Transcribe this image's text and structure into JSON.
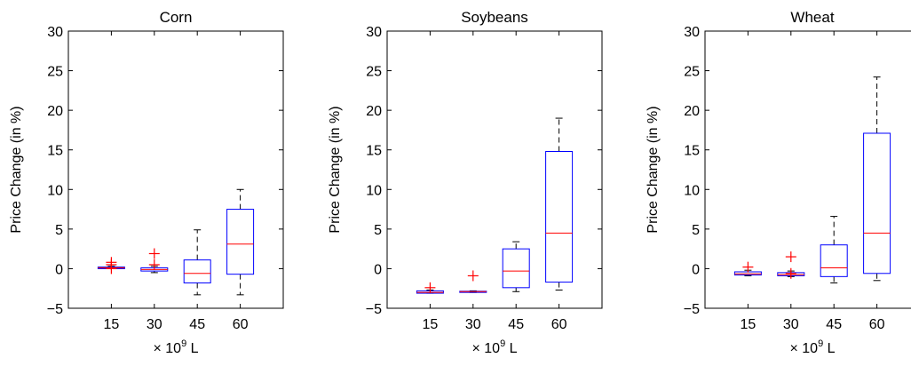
{
  "chart_data": [
    {
      "type": "box",
      "title": "Corn",
      "xlabel": "× 10^9 L",
      "ylabel": "Price Change (in %)",
      "categories": [
        "15",
        "30",
        "45",
        "60"
      ],
      "ylim": [
        -5,
        30
      ],
      "yticks": [
        -5,
        0,
        5,
        10,
        15,
        20,
        25,
        30
      ],
      "boxes": [
        {
          "category": "15",
          "whisker_low": 0.0,
          "q1": 0.0,
          "median": 0.1,
          "q3": 0.2,
          "whisker_high": 0.3,
          "outliers": [
            0.8,
            0.5,
            0.0
          ]
        },
        {
          "category": "30",
          "whisker_low": -0.5,
          "q1": -0.3,
          "median": -0.1,
          "q3": 0.1,
          "whisker_high": 0.3,
          "outliers": [
            1.9,
            0.5
          ]
        },
        {
          "category": "45",
          "whisker_low": -3.3,
          "q1": -1.8,
          "median": -0.6,
          "q3": 1.1,
          "whisker_high": 4.9,
          "outliers": []
        },
        {
          "category": "60",
          "whisker_low": -3.3,
          "q1": -0.7,
          "median": 3.1,
          "q3": 7.5,
          "whisker_high": 10.0,
          "outliers": []
        }
      ]
    },
    {
      "type": "box",
      "title": "Soybeans",
      "xlabel": "× 10^9 L",
      "ylabel": "Price Change (in %)",
      "categories": [
        "15",
        "30",
        "45",
        "60"
      ],
      "ylim": [
        -5,
        30
      ],
      "yticks": [
        -5,
        0,
        5,
        10,
        15,
        20,
        25,
        30
      ],
      "boxes": [
        {
          "category": "15",
          "whisker_low": -3.1,
          "q1": -3.1,
          "median": -3.0,
          "q3": -2.8,
          "whisker_high": -2.7,
          "outliers": [
            -2.4
          ]
        },
        {
          "category": "30",
          "whisker_low": -3.0,
          "q1": -3.0,
          "median": -2.9,
          "q3": -2.85,
          "whisker_high": -2.8,
          "outliers": [
            -0.9
          ]
        },
        {
          "category": "45",
          "whisker_low": -2.9,
          "q1": -2.4,
          "median": -0.3,
          "q3": 2.5,
          "whisker_high": 3.4,
          "outliers": []
        },
        {
          "category": "60",
          "whisker_low": -2.7,
          "q1": -1.7,
          "median": 4.5,
          "q3": 14.8,
          "whisker_high": 19.0,
          "outliers": []
        }
      ]
    },
    {
      "type": "box",
      "title": "Wheat",
      "xlabel": "× 10^9 L",
      "ylabel": "Price Change (in %)",
      "categories": [
        "15",
        "30",
        "45",
        "60"
      ],
      "ylim": [
        -5,
        30
      ],
      "yticks": [
        -5,
        0,
        5,
        10,
        15,
        20,
        25,
        30
      ],
      "boxes": [
        {
          "category": "15",
          "whisker_low": -0.9,
          "q1": -0.8,
          "median": -0.65,
          "q3": -0.4,
          "whisker_high": -0.2,
          "outliers": [
            0.2
          ]
        },
        {
          "category": "30",
          "whisker_low": -1.0,
          "q1": -0.9,
          "median": -0.75,
          "q3": -0.5,
          "whisker_high": -0.3,
          "outliers": [
            1.5,
            -0.6
          ]
        },
        {
          "category": "45",
          "whisker_low": -1.8,
          "q1": -1.0,
          "median": 0.1,
          "q3": 3.0,
          "whisker_high": 6.6,
          "outliers": []
        },
        {
          "category": "60",
          "whisker_low": -1.5,
          "q1": -0.6,
          "median": 4.5,
          "q3": 17.1,
          "whisker_high": 24.2,
          "outliers": []
        }
      ]
    }
  ]
}
